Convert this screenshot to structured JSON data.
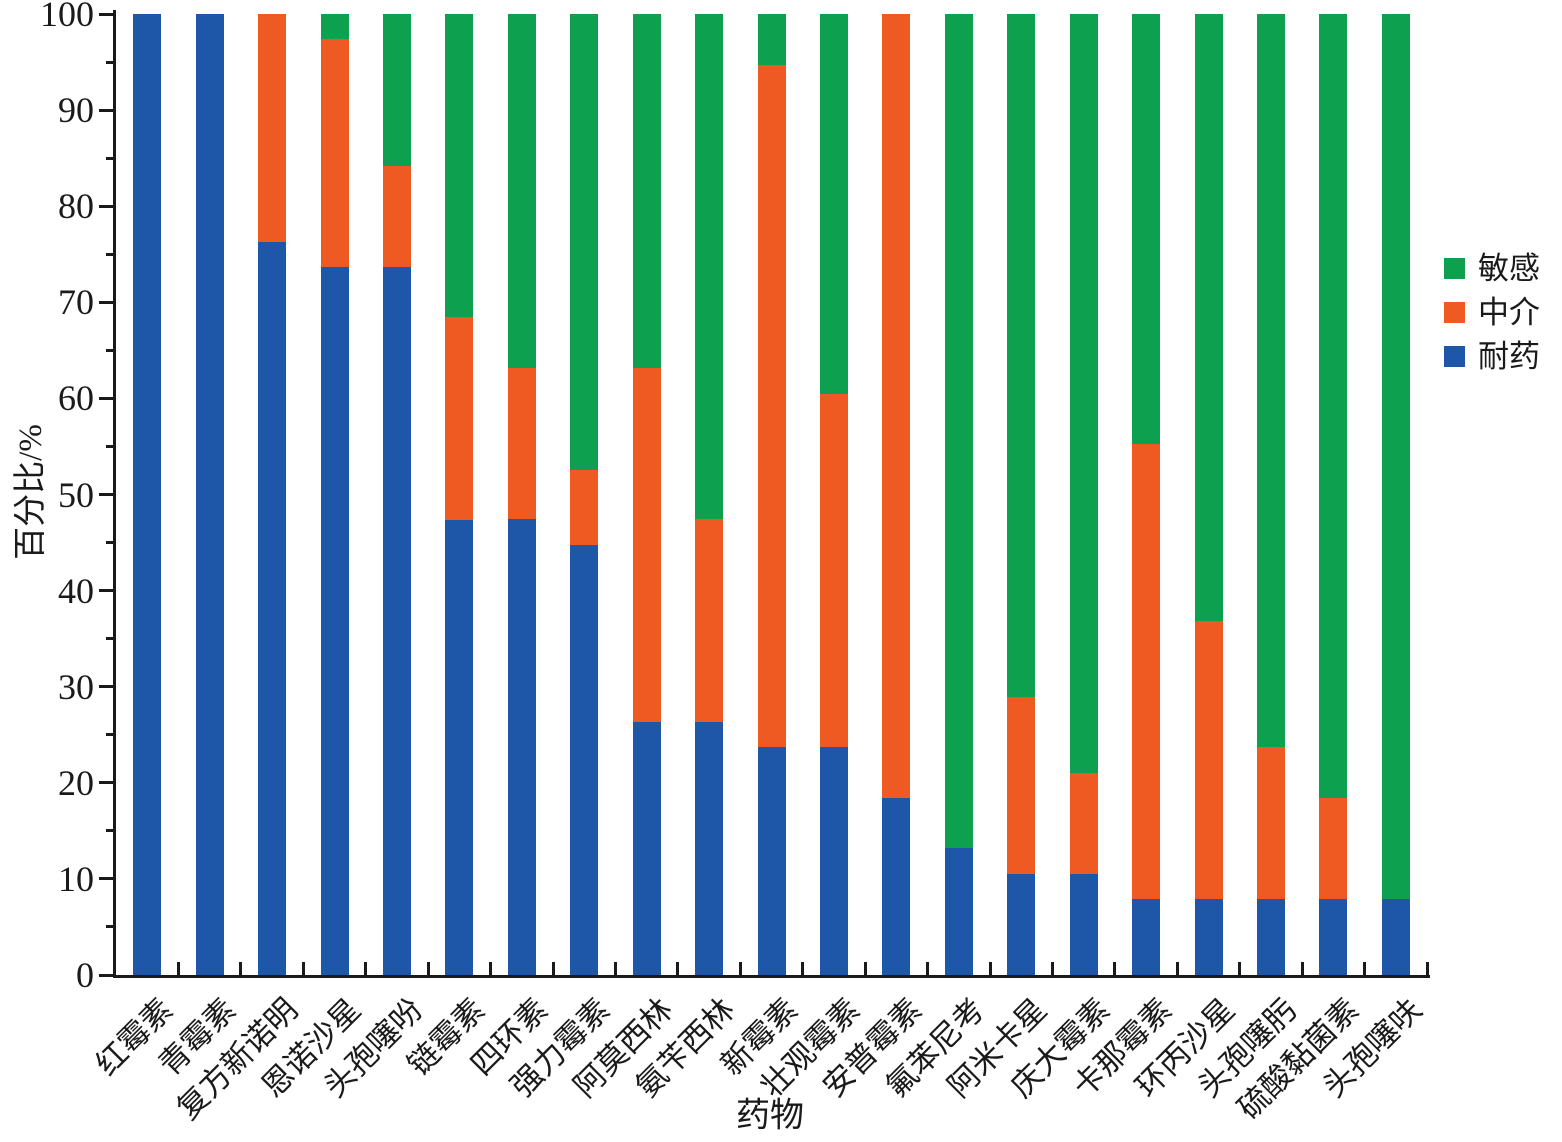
{
  "chart_data": {
    "type": "bar",
    "subtype": "stacked-percent",
    "title": "",
    "xlabel": "药物",
    "ylabel": "百分比/%",
    "ylim": [
      0,
      100
    ],
    "y_major_ticks": [
      0,
      10,
      20,
      30,
      40,
      50,
      60,
      70,
      80,
      90,
      100
    ],
    "y_minor_tick_step": 5,
    "grid": "off",
    "legend_position": "right",
    "categories": [
      "红霉素",
      "青霉素",
      "复方新诺明",
      "恩诺沙星",
      "头孢噻吩",
      "链霉素",
      "四环素",
      "强力霉素",
      "阿莫西林",
      "氨苄西林",
      "新霉素",
      "壮观霉素",
      "安普霉素",
      "氟苯尼考",
      "阿米卡星",
      "庆大霉素",
      "卡那霉素",
      "环丙沙星",
      "头孢噻肟",
      "硫酸黏菌素",
      "头孢噻呋"
    ],
    "series": [
      {
        "key": "resistant",
        "name": "耐药",
        "color": "#1E56A8",
        "values": [
          100,
          100,
          76.3,
          73.7,
          73.7,
          47.4,
          47.4,
          44.7,
          26.3,
          26.3,
          23.7,
          23.7,
          18.4,
          13.2,
          10.5,
          10.5,
          7.9,
          7.9,
          7.9,
          7.9,
          7.9
        ]
      },
      {
        "key": "intermediate",
        "name": "中介",
        "color": "#EE5A22",
        "values": [
          0,
          0,
          23.7,
          23.7,
          10.5,
          21.1,
          15.8,
          7.9,
          36.8,
          21.1,
          71.1,
          36.8,
          81.6,
          0,
          18.4,
          10.5,
          47.4,
          28.9,
          15.8,
          10.5,
          0
        ]
      },
      {
        "key": "sensitive",
        "name": "敏感",
        "color": "#0CA04F",
        "values": [
          0,
          0,
          0,
          2.6,
          15.8,
          31.6,
          36.8,
          47.4,
          36.8,
          52.6,
          5.3,
          39.5,
          0,
          86.8,
          71.1,
          78.9,
          44.7,
          63.2,
          76.3,
          81.6,
          92.1
        ]
      }
    ],
    "legend": [
      {
        "label": "敏感",
        "color": "#0CA04F"
      },
      {
        "label": "中介",
        "color": "#EE5A22"
      },
      {
        "label": "耐药",
        "color": "#1E56A8"
      }
    ],
    "axis_color": "#1a1a1a"
  }
}
